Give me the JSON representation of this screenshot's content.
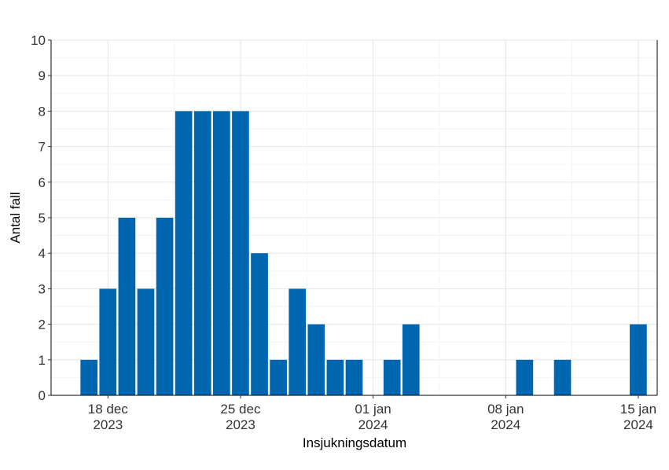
{
  "chart_data": {
    "type": "bar",
    "xlabel": "Insjukningsdatum",
    "ylabel": "Antal fall",
    "ylim": [
      0,
      10
    ],
    "y_ticks": [
      0,
      1,
      2,
      3,
      4,
      5,
      6,
      7,
      8,
      9,
      10
    ],
    "x_range": [
      "2023-12-15",
      "2024-01-16"
    ],
    "x_ticks": [
      {
        "date": "2023-12-18",
        "line1": "18 dec",
        "line2": "2023"
      },
      {
        "date": "2023-12-25",
        "line1": "25 dec",
        "line2": "2023"
      },
      {
        "date": "2024-01-01",
        "line1": "01 jan",
        "line2": "2024"
      },
      {
        "date": "2024-01-08",
        "line1": "08 jan",
        "line2": "2024"
      },
      {
        "date": "2024-01-15",
        "line1": "15 jan",
        "line2": "2024"
      }
    ],
    "bar_color": "#0066b0",
    "grid": true,
    "bars": [
      {
        "date": "2023-12-17",
        "value": 1
      },
      {
        "date": "2023-12-18",
        "value": 3
      },
      {
        "date": "2023-12-19",
        "value": 5
      },
      {
        "date": "2023-12-20",
        "value": 3
      },
      {
        "date": "2023-12-21",
        "value": 5
      },
      {
        "date": "2023-12-22",
        "value": 8
      },
      {
        "date": "2023-12-23",
        "value": 8
      },
      {
        "date": "2023-12-24",
        "value": 8
      },
      {
        "date": "2023-12-25",
        "value": 8
      },
      {
        "date": "2023-12-26",
        "value": 4
      },
      {
        "date": "2023-12-27",
        "value": 1
      },
      {
        "date": "2023-12-28",
        "value": 3
      },
      {
        "date": "2023-12-29",
        "value": 2
      },
      {
        "date": "2023-12-30",
        "value": 1
      },
      {
        "date": "2023-12-31",
        "value": 1
      },
      {
        "date": "2024-01-02",
        "value": 1
      },
      {
        "date": "2024-01-03",
        "value": 2
      },
      {
        "date": "2024-01-09",
        "value": 1
      },
      {
        "date": "2024-01-11",
        "value": 1
      },
      {
        "date": "2024-01-15",
        "value": 2
      }
    ]
  }
}
